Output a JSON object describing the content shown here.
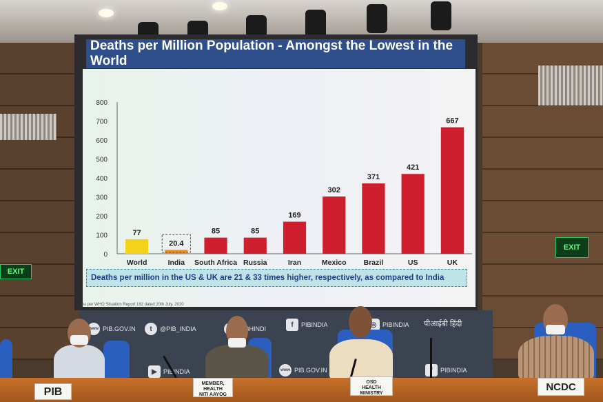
{
  "chart_data": {
    "type": "bar",
    "title": "Deaths per Million Population - Amongst the Lowest in the World",
    "categories": [
      "World",
      "India",
      "South Africa",
      "Russia",
      "Iran",
      "Mexico",
      "Brazil",
      "US",
      "UK"
    ],
    "values": [
      77,
      20.4,
      85,
      85,
      169,
      302,
      371,
      421,
      667
    ],
    "value_labels": [
      "77",
      "20.4",
      "85",
      "85",
      "169",
      "302",
      "371",
      "421",
      "667"
    ],
    "y_ticks": [
      "0",
      "100",
      "200",
      "300",
      "400",
      "500",
      "600",
      "700",
      "800"
    ],
    "ylim": [
      0,
      800
    ],
    "bar_colors": [
      "#f5d21a",
      "#f08a24",
      "#cf1f2e",
      "#cf1f2e",
      "#cf1f2e",
      "#cf1f2e",
      "#cf1f2e",
      "#cf1f2e",
      "#cf1f2e"
    ],
    "xlabel": "",
    "ylabel": "",
    "note": "Deaths per million in the US & UK are 21 & 33 times higher, respectively, as compared to India",
    "source": "As per WHO Situation Report 182 dated 20th July, 2020"
  },
  "backdrop": {
    "items": [
      {
        "icon": "www",
        "label": "PIB.GOV.IN"
      },
      {
        "icon": "t",
        "label": "@PIB_INDIA"
      },
      {
        "icon": "✪",
        "label": "PIBHINDI"
      },
      {
        "icon": "f",
        "label": "PIBINDIA"
      },
      {
        "icon": "◎",
        "label": "PIBINDIA"
      },
      {
        "icon": "",
        "label": "पीआईबी हिंदी"
      },
      {
        "icon": "▶",
        "label": "PIBINDIA"
      },
      {
        "icon": "www",
        "label": "PIB.GOV.IN"
      },
      {
        "icon": "f",
        "label": "PIBINDIA"
      }
    ]
  },
  "nameplates": {
    "pib": "PIB",
    "niti_line1": "MEMBER, HEALTH",
    "niti_line2": "NITI AAYOG",
    "osd_line1": "OSD",
    "osd_line2": "HEALTH MINISTRY",
    "ncdc": "NCDC"
  },
  "exit_sign": "EXIT"
}
